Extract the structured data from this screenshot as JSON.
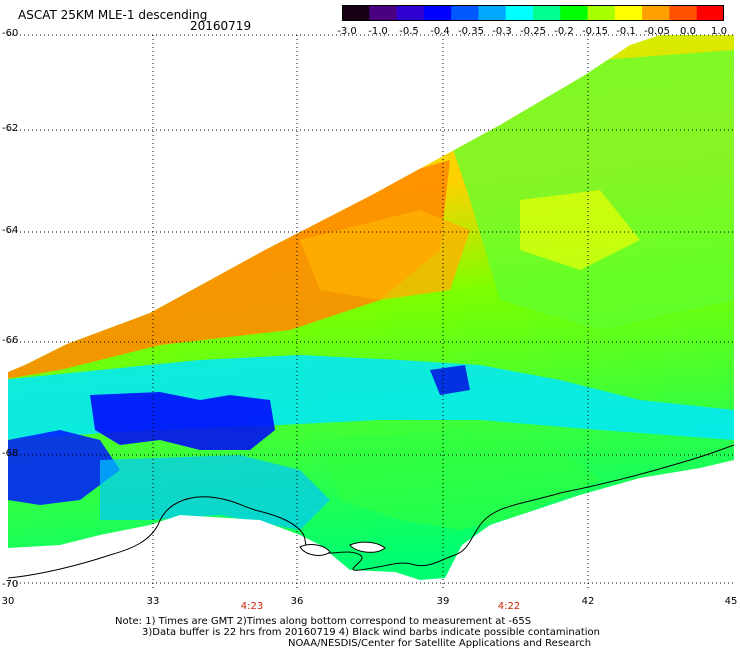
{
  "header": {
    "title": "ASCAT 25KM MLE-1 descending",
    "date": "20160719"
  },
  "colorbar": {
    "labels": [
      "-3.0",
      "-1.0",
      "-0.5",
      "-0.4",
      "-0.35",
      "-0.3",
      "-0.25",
      "-0.2",
      "-0.15",
      "-0.1",
      "-0.05",
      "0.0",
      "1.0"
    ],
    "colors": [
      "#150015",
      "#4a0080",
      "#3000d0",
      "#0000ff",
      "#0058ff",
      "#00a8ff",
      "#00ffff",
      "#00ff90",
      "#00ff00",
      "#a8ff00",
      "#ffff00",
      "#ffa000",
      "#ff5000",
      "#ff0000"
    ]
  },
  "map": {
    "lat_labels": [
      "-60",
      "-62",
      "-64",
      "-66",
      "-68",
      "-70"
    ],
    "lon_labels": [
      "30",
      "33",
      "36",
      "39",
      "42",
      "45"
    ],
    "time_labels": [
      "4:23",
      "4:22"
    ]
  },
  "notes": [
    "Note: 1) Times are GMT 2)Times along bottom correspond to measurement at -65S",
    "3)Data buffer is 22 hrs from 20160719 4) Black wind barbs indicate possible contamination",
    "NOAA/NESDIS/Center for Satellite Applications and Research"
  ]
}
